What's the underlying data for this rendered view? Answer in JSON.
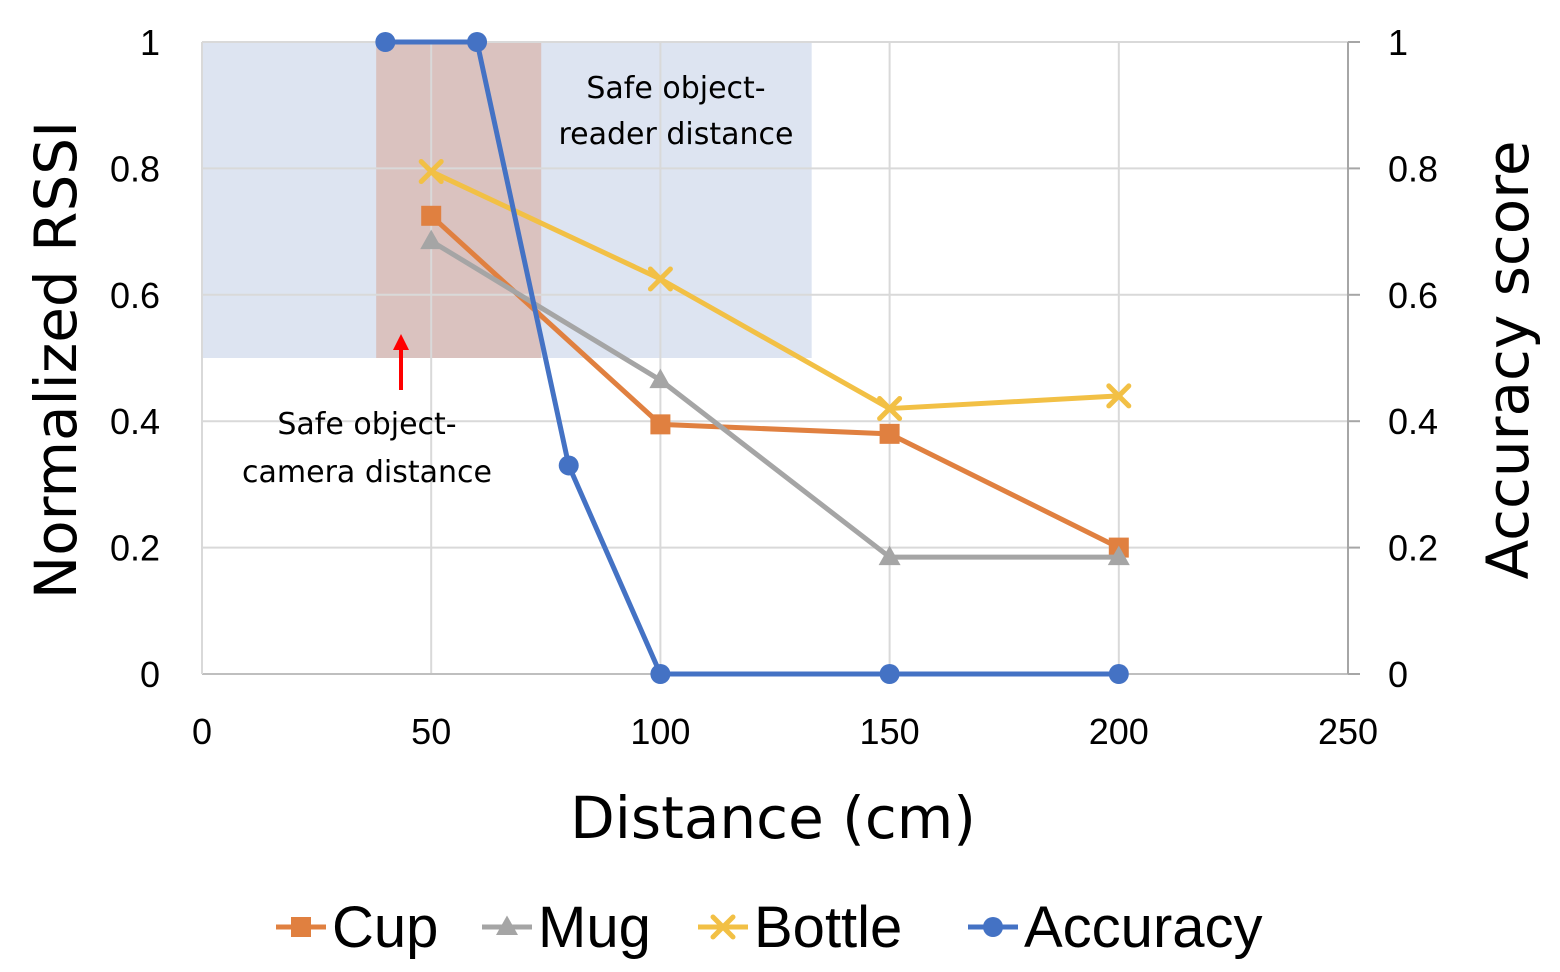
{
  "chart_data": {
    "type": "line",
    "xlabel": "Distance (cm)",
    "ylabel": "Normalized RSSI",
    "y2label": "Accuracy score",
    "xlim": [
      0,
      250
    ],
    "ylim": [
      0,
      1
    ],
    "y2lim": [
      0,
      1
    ],
    "x_ticks": [
      0,
      50,
      100,
      150,
      200,
      250
    ],
    "y_ticks": [
      0,
      0.2,
      0.4,
      0.6,
      0.8,
      1
    ],
    "y2_ticks": [
      0,
      0.2,
      0.4,
      0.6,
      0.8,
      1
    ],
    "grid": true,
    "legend_position": "bottom",
    "series": [
      {
        "name": "Cup",
        "axis": "left",
        "marker": "square",
        "color": "#E08040",
        "x": [
          50,
          100,
          150,
          200
        ],
        "values": [
          0.725,
          0.395,
          0.38,
          0.2
        ]
      },
      {
        "name": "Mug",
        "axis": "left",
        "marker": "triangle",
        "color": "#A5A5A5",
        "x": [
          50,
          100,
          150,
          200
        ],
        "values": [
          0.685,
          0.465,
          0.185,
          0.185
        ]
      },
      {
        "name": "Bottle",
        "axis": "left",
        "marker": "x",
        "color": "#F2C045",
        "x": [
          50,
          100,
          150,
          200
        ],
        "values": [
          0.795,
          0.625,
          0.42,
          0.44
        ]
      },
      {
        "name": "Accuracy",
        "axis": "right",
        "marker": "circle",
        "color": "#4472C4",
        "x": [
          40,
          60,
          80,
          100,
          150,
          200
        ],
        "values": [
          1,
          1,
          0.33,
          0,
          0,
          0
        ]
      }
    ],
    "regions": [
      {
        "label_lines": [
          "Safe object-",
          "reader distance"
        ],
        "x_range": [
          0,
          133
        ],
        "y_range": [
          0.5,
          1
        ],
        "color": "#B4C3E1"
      },
      {
        "label_lines": [
          "Safe object-",
          "camera distance"
        ],
        "x_range": [
          38,
          74
        ],
        "y_range": [
          0.5,
          1
        ],
        "color": "#D9B4AA"
      }
    ],
    "annotation_arrow_color": "#FF0000"
  }
}
